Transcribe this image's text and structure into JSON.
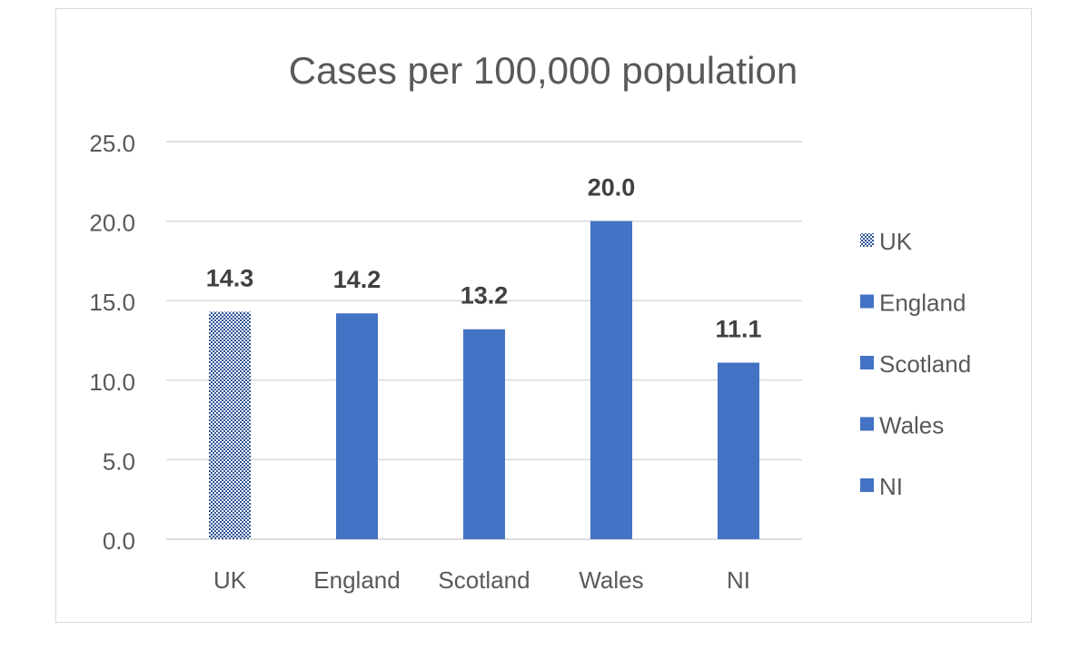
{
  "chart_data": {
    "type": "bar",
    "title": "Cases per 100,000 population",
    "categories": [
      "UK",
      "England",
      "Scotland",
      "Wales",
      "NI"
    ],
    "values": [
      14.3,
      14.2,
      13.2,
      20.0,
      11.1
    ],
    "data_labels": [
      "14.3",
      "14.2",
      "13.2",
      "20.0",
      "11.1"
    ],
    "ylim": [
      0,
      25
    ],
    "yticks": [
      "0.0",
      "5.0",
      "10.0",
      "15.0",
      "20.0",
      "25.0"
    ],
    "ytick_values": [
      0,
      5,
      10,
      15,
      20,
      25
    ],
    "grid": true,
    "legend": {
      "placement": "right",
      "entries": [
        "UK",
        "England",
        "Scotland",
        "Wales",
        "NI"
      ]
    },
    "colors": {
      "bar": "#4472c4",
      "uk_pattern": "checkered",
      "grid": "#d9d9d9",
      "text": "#595959",
      "data_label": "#404040"
    }
  }
}
